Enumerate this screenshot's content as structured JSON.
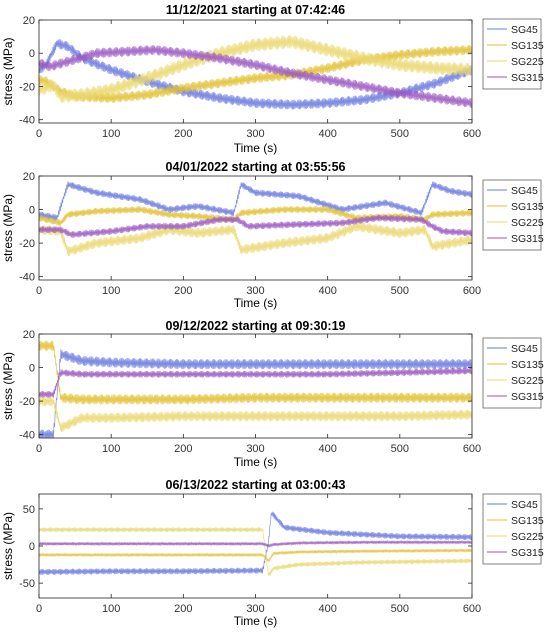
{
  "colors": {
    "SG45": "#6a79e0",
    "SG135": "#e2c02e",
    "SG225": "#ead86e",
    "SG315": "#9a56c2",
    "axis": "#262626",
    "legend_border": "#4d4d4d"
  },
  "chart_data": [
    {
      "type": "line",
      "title": "11/12/2021 starting at 07:42:46",
      "xlabel": "Time (s)",
      "ylabel": "stress (MPa)",
      "xlim": [
        0,
        600
      ],
      "ylim": [
        -42,
        20
      ],
      "xticks": [
        "0",
        "100",
        "200",
        "300",
        "400",
        "500",
        "600"
      ],
      "xtick_values": [
        0,
        100,
        200,
        300,
        400,
        500,
        600
      ],
      "yticks": [
        "-40",
        "-20",
        "0",
        "20"
      ],
      "ytick_values": [
        -40,
        -20,
        0,
        20
      ],
      "legend": [
        "SG45",
        "SG135",
        "SG225",
        "SG315"
      ],
      "legend_position": "outside-right",
      "grid": false,
      "series": [
        {
          "name": "SG45",
          "x": [
            0,
            10,
            25,
            40,
            60,
            100,
            150,
            200,
            250,
            300,
            350,
            400,
            450,
            500,
            550,
            600
          ],
          "y": [
            -10,
            -7,
            6,
            4,
            -3,
            -10,
            -17,
            -23,
            -27,
            -30,
            -31,
            -30,
            -28,
            -24,
            -18,
            -10
          ],
          "amplitude": 3
        },
        {
          "name": "SG135",
          "x": [
            0,
            10,
            30,
            50,
            100,
            150,
            200,
            250,
            300,
            350,
            400,
            450,
            500,
            550,
            600
          ],
          "y": [
            -16,
            -17,
            -23,
            -26,
            -27,
            -25,
            -21,
            -18,
            -15,
            -13,
            -9,
            -4,
            -1,
            1,
            2
          ],
          "amplitude": 3
        },
        {
          "name": "SG225",
          "x": [
            0,
            20,
            30,
            60,
            100,
            150,
            200,
            250,
            300,
            350,
            400,
            450,
            500,
            550,
            600
          ],
          "y": [
            -22,
            -19,
            -26,
            -25,
            -22,
            -15,
            -7,
            0,
            5,
            7,
            2,
            -3,
            -7,
            -9,
            -10
          ],
          "amplitude": 4
        },
        {
          "name": "SG315",
          "x": [
            0,
            15,
            40,
            80,
            120,
            160,
            200,
            250,
            300,
            350,
            400,
            450,
            500,
            550,
            600
          ],
          "y": [
            -6,
            -8,
            -5,
            0,
            1,
            2,
            0,
            -3,
            -7,
            -12,
            -16,
            -20,
            -24,
            -27,
            -30
          ],
          "amplitude": 3
        }
      ]
    },
    {
      "type": "line",
      "title": "04/01/2022 starting at 03:55:56",
      "xlabel": "Time (s)",
      "ylabel": "stress (MPa)",
      "xlim": [
        0,
        600
      ],
      "ylim": [
        -42,
        20
      ],
      "xticks": [
        "0",
        "100",
        "200",
        "300",
        "400",
        "500",
        "600"
      ],
      "xtick_values": [
        0,
        100,
        200,
        300,
        400,
        500,
        600
      ],
      "yticks": [
        "-40",
        "-20",
        "0",
        "20"
      ],
      "ytick_values": [
        -40,
        -20,
        0,
        20
      ],
      "legend": [
        "SG45",
        "SG135",
        "SG225",
        "SG315"
      ],
      "legend_position": "outside-right",
      "grid": false,
      "series": [
        {
          "name": "SG45",
          "x": [
            0,
            25,
            40,
            80,
            140,
            180,
            220,
            270,
            280,
            300,
            360,
            420,
            480,
            530,
            545,
            570,
            600
          ],
          "y": [
            -3,
            -5,
            15,
            10,
            6,
            0,
            2,
            -2,
            15,
            10,
            8,
            0,
            4,
            -2,
            15,
            11,
            9
          ],
          "amplitude": 2
        },
        {
          "name": "SG135",
          "x": [
            0,
            30,
            40,
            80,
            140,
            180,
            220,
            270,
            280,
            340,
            400,
            440,
            500,
            535,
            545,
            600
          ],
          "y": [
            -5,
            -8,
            -3,
            -1,
            0,
            -3,
            -4,
            -6,
            -2,
            0,
            0,
            -5,
            -4,
            -6,
            -3,
            -2
          ],
          "amplitude": 2
        },
        {
          "name": "SG225",
          "x": [
            0,
            30,
            40,
            80,
            140,
            180,
            220,
            270,
            280,
            340,
            400,
            440,
            500,
            535,
            545,
            600
          ],
          "y": [
            -12,
            -13,
            -25,
            -20,
            -17,
            -12,
            -14,
            -12,
            -24,
            -20,
            -17,
            -10,
            -14,
            -12,
            -22,
            -18
          ],
          "amplitude": 3
        },
        {
          "name": "SG315",
          "x": [
            0,
            30,
            45,
            100,
            150,
            200,
            250,
            275,
            290,
            350,
            420,
            470,
            530,
            545,
            560,
            600
          ],
          "y": [
            -12,
            -12,
            -15,
            -13,
            -10,
            -10,
            -6,
            -6,
            -10,
            -9,
            -8,
            -5,
            -6,
            -10,
            -13,
            -14
          ],
          "amplitude": 2
        }
      ]
    },
    {
      "type": "line",
      "title": "09/12/2022 starting at 09:30:19",
      "xlabel": "Time (s)",
      "ylabel": "stress (MPa)",
      "xlim": [
        0,
        600
      ],
      "ylim": [
        -42,
        20
      ],
      "xticks": [
        "0",
        "100",
        "200",
        "300",
        "400",
        "500",
        "600"
      ],
      "xtick_values": [
        0,
        100,
        200,
        300,
        400,
        500,
        600
      ],
      "yticks": [
        "-40",
        "-20",
        "0",
        "20"
      ],
      "ytick_values": [
        -40,
        -20,
        0,
        20
      ],
      "legend": [
        "SG45",
        "SG135",
        "SG225",
        "SG315"
      ],
      "legend_position": "outside-right",
      "grid": false,
      "series": [
        {
          "name": "SG45",
          "x": [
            0,
            20,
            30,
            60,
            100,
            200,
            300,
            400,
            500,
            600
          ],
          "y": [
            -40,
            -40,
            8,
            4,
            3,
            2,
            2,
            2,
            2,
            2
          ],
          "amplitude": 3
        },
        {
          "name": "SG135",
          "x": [
            0,
            20,
            30,
            60,
            100,
            200,
            300,
            400,
            500,
            600
          ],
          "y": [
            13,
            13,
            -18,
            -19,
            -19,
            -19,
            -18,
            -18,
            -18,
            -18
          ],
          "amplitude": 3
        },
        {
          "name": "SG225",
          "x": [
            0,
            20,
            30,
            60,
            100,
            200,
            300,
            400,
            500,
            600
          ],
          "y": [
            -20,
            -20,
            -36,
            -30,
            -30,
            -29,
            -29,
            -29,
            -29,
            -28
          ],
          "amplitude": 3
        },
        {
          "name": "SG315",
          "x": [
            0,
            20,
            30,
            60,
            100,
            200,
            300,
            400,
            500,
            600
          ],
          "y": [
            -16,
            -16,
            -3,
            -4,
            -4,
            -4,
            -4,
            -4,
            -3,
            -2
          ],
          "amplitude": 2
        }
      ]
    },
    {
      "type": "line",
      "title": "06/13/2022 starting at 03:00:43",
      "xlabel": "Time (s)",
      "ylabel": "stress (MPa)",
      "xlim": [
        0,
        600
      ],
      "ylim": [
        -70,
        70
      ],
      "xticks": [
        "0",
        "100",
        "200",
        "300",
        "400",
        "500",
        "600"
      ],
      "xtick_values": [
        0,
        100,
        200,
        300,
        400,
        500,
        600
      ],
      "yticks": [
        "-50",
        "0",
        "50"
      ],
      "ytick_values": [
        -50,
        0,
        50
      ],
      "legend": [
        "SG45",
        "SG135",
        "SG225",
        "SG315"
      ],
      "legend_position": "outside-right",
      "grid": false,
      "series": [
        {
          "name": "SG45",
          "x": [
            0,
            100,
            200,
            310,
            318,
            322,
            340,
            400,
            500,
            600
          ],
          "y": [
            -35,
            -34,
            -34,
            -33,
            5,
            45,
            25,
            18,
            13,
            12
          ],
          "amplitude": 4
        },
        {
          "name": "SG135",
          "x": [
            0,
            100,
            200,
            310,
            318,
            325,
            360,
            450,
            600
          ],
          "y": [
            -12,
            -12,
            -12,
            -12,
            -20,
            -10,
            -8,
            -7,
            -6
          ],
          "amplitude": 2
        },
        {
          "name": "SG225",
          "x": [
            0,
            100,
            200,
            310,
            318,
            325,
            360,
            450,
            600
          ],
          "y": [
            22,
            22,
            22,
            22,
            -40,
            -30,
            -25,
            -22,
            -20
          ],
          "amplitude": 3
        },
        {
          "name": "SG315",
          "x": [
            0,
            100,
            200,
            310,
            318,
            325,
            360,
            450,
            600
          ],
          "y": [
            3,
            3,
            3,
            3,
            0,
            2,
            4,
            5,
            5
          ],
          "amplitude": 2
        }
      ]
    }
  ]
}
